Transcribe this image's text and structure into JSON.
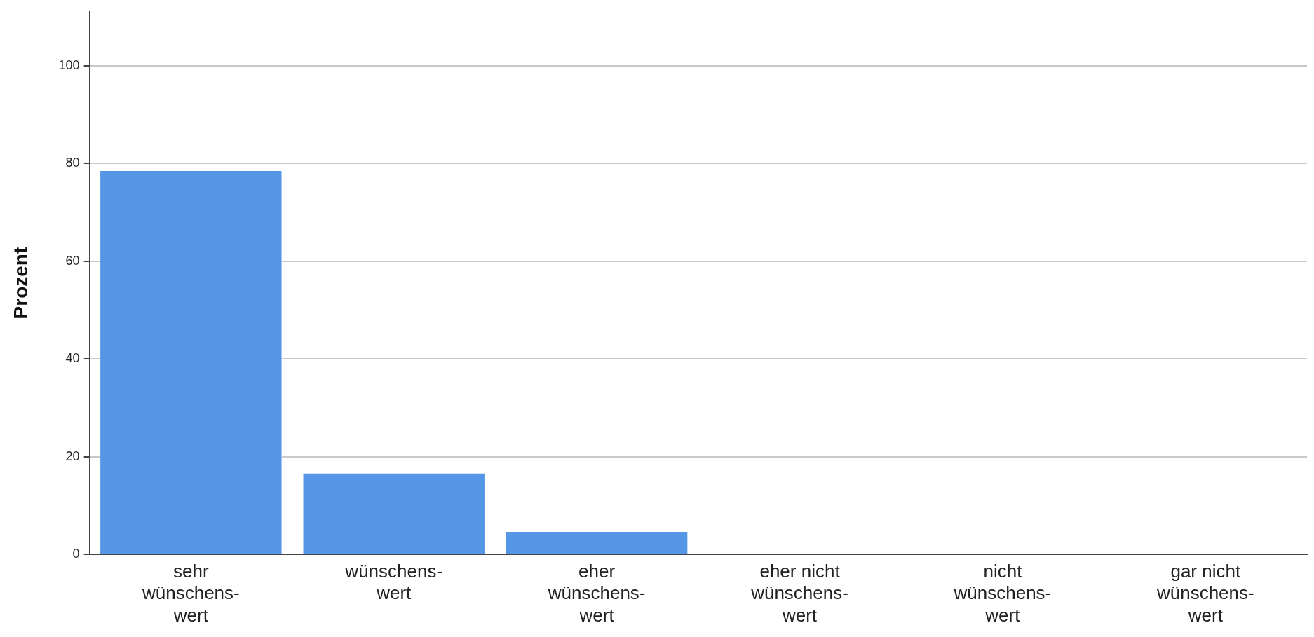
{
  "chart_data": {
    "type": "bar",
    "ylabel": "Prozent",
    "categories": [
      "sehr\nwünschens-\nwert",
      "wünschens-\nwert",
      "eher\nwünschens-\nwert",
      "eher nicht\nwünschens-\nwert",
      "nicht\nwünschens-\nwert",
      "gar nicht\nwünschens-\nwert"
    ],
    "values": [
      78.6,
      16.7,
      4.8,
      0,
      0,
      0
    ],
    "color": "#5596e6",
    "ylim": [
      0,
      111
    ],
    "yticks": [
      0,
      20,
      40,
      60,
      80,
      100
    ],
    "grid": "y"
  }
}
